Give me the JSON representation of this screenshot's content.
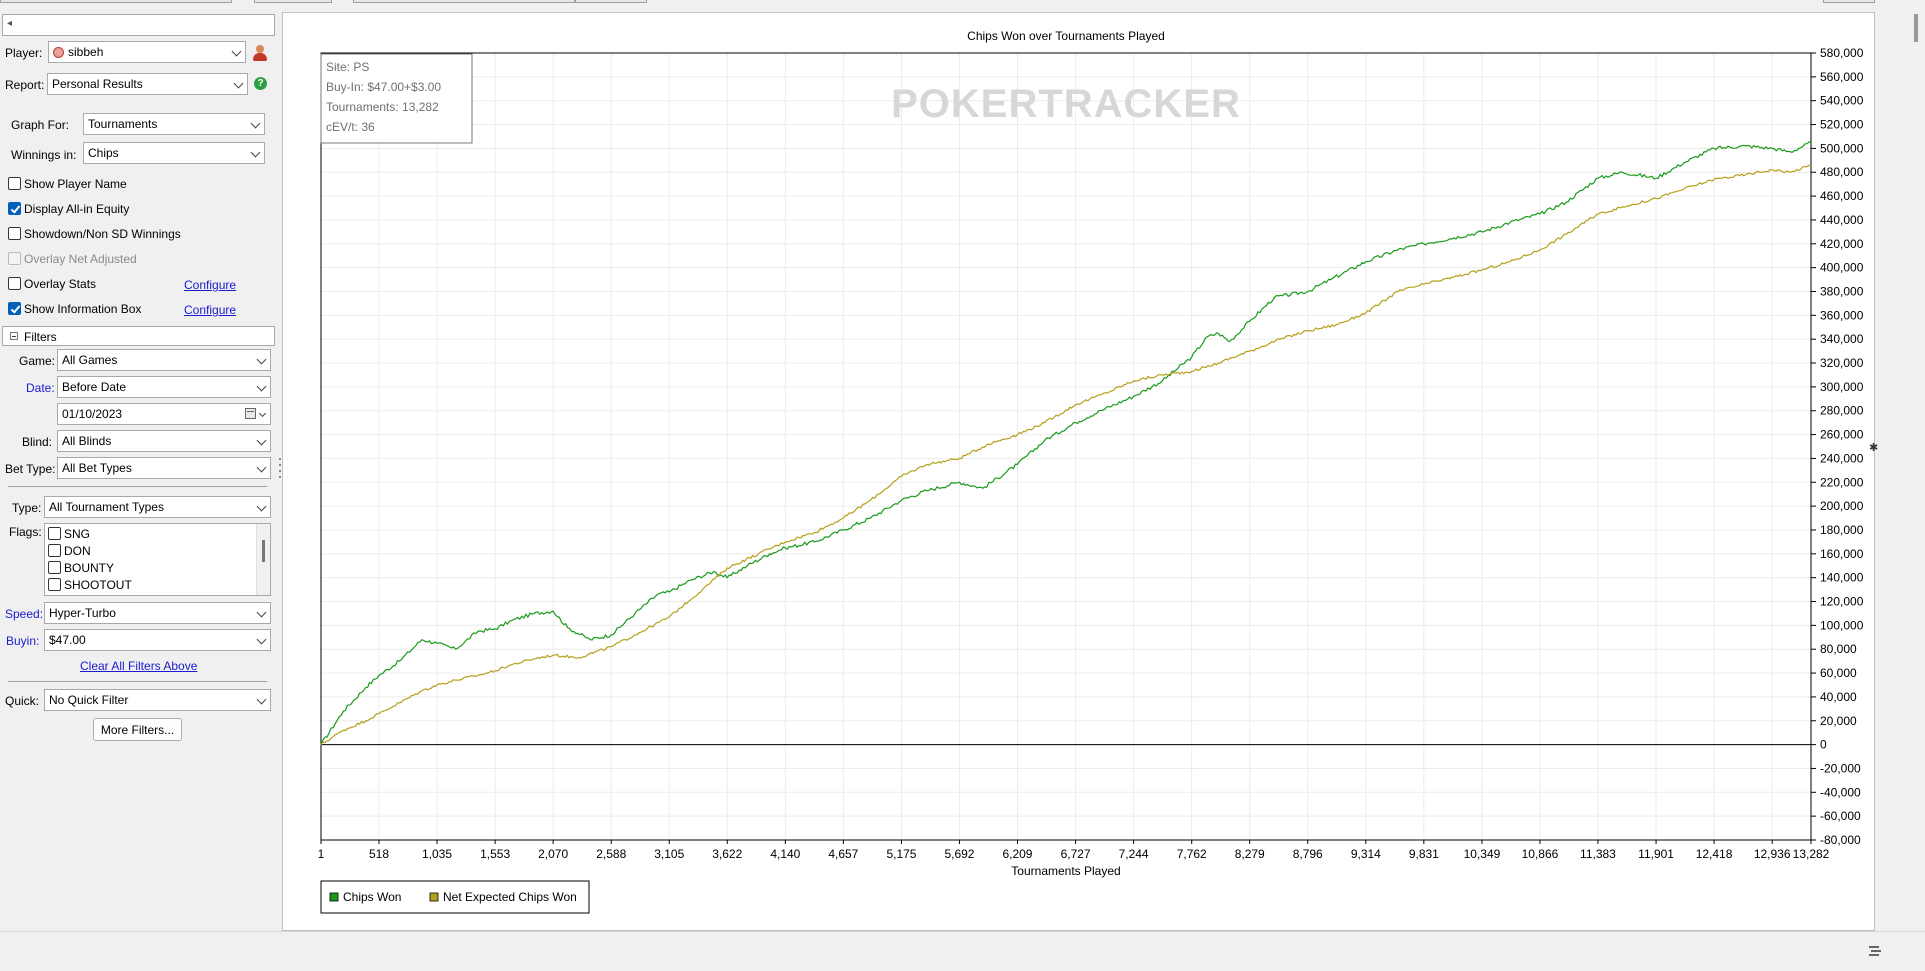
{
  "left_panel": {
    "collapse_chevron": "◂",
    "player_label": "Player:",
    "player_value": "sibbeh",
    "report_label": "Report:",
    "report_value": "Personal Results",
    "graph_for_label": "Graph For:",
    "graph_for_value": "Tournaments",
    "winnings_in_label": "Winnings in:",
    "winnings_in_value": "Chips",
    "options": [
      {
        "label": "Show Player Name",
        "checked": false,
        "disabled": false
      },
      {
        "label": "Display All-in Equity",
        "checked": true,
        "disabled": false
      },
      {
        "label": "Showdown/Non SD Winnings",
        "checked": false,
        "disabled": false
      },
      {
        "label": "Overlay Net Adjusted",
        "checked": false,
        "disabled": true
      },
      {
        "label": "Overlay Stats",
        "checked": false,
        "disabled": false
      },
      {
        "label": "Show Information Box",
        "checked": true,
        "disabled": false
      }
    ],
    "configure_label": "Configure"
  },
  "filters": {
    "header": "Filters",
    "game_label": "Game:",
    "game_value": "All Games",
    "date_label": "Date:",
    "date_value": "Before Date",
    "date_input": "01/10/2023",
    "blind_label": "Blind:",
    "blind_value": "All Blinds",
    "bet_type_label": "Bet Type:",
    "bet_type_value": "All Bet Types",
    "type_label": "Type:",
    "type_value": "All Tournament Types",
    "flags_label": "Flags:",
    "flags": [
      "SNG",
      "DON",
      "BOUNTY",
      "SHOOTOUT"
    ],
    "speed_label": "Speed:",
    "speed_value": "Hyper-Turbo",
    "buyin_label": "Buyin:",
    "buyin_value": "$47.00",
    "clear_link": "Clear All Filters Above",
    "quick_label": "Quick:",
    "quick_value": "No Quick Filter",
    "more_filters": "More Filters..."
  },
  "info_box": {
    "site": "Site: PS",
    "buy_in": "Buy-In: $47.00+$3.00",
    "tournaments": "Tournaments: 13,282",
    "cev": "cEV/t: 36"
  },
  "watermark": "POKERTRACKER",
  "chart_data": {
    "type": "line",
    "title": "Chips Won over Tournaments Played",
    "xlabel": "Tournaments Played",
    "ylabel": "",
    "x_ticks": [
      "1",
      "518",
      "1,035",
      "1,553",
      "2,070",
      "2,588",
      "3,105",
      "3,622",
      "4,140",
      "4,657",
      "5,175",
      "5,692",
      "6,209",
      "6,727",
      "7,244",
      "7,762",
      "8,279",
      "8,796",
      "9,314",
      "9,831",
      "10,349",
      "10,866",
      "11,383",
      "11,901",
      "12,418",
      "12,936",
      "13,282"
    ],
    "y_ticks": [
      "580,000",
      "560,000",
      "540,000",
      "520,000",
      "500,000",
      "480,000",
      "460,000",
      "440,000",
      "420,000",
      "400,000",
      "380,000",
      "360,000",
      "340,000",
      "320,000",
      "300,000",
      "280,000",
      "260,000",
      "240,000",
      "220,000",
      "200,000",
      "180,000",
      "160,000",
      "140,000",
      "120,000",
      "100,000",
      "80,000",
      "60,000",
      "40,000",
      "20,000",
      "0",
      "-20,000",
      "-40,000",
      "-60,000",
      "-80,000"
    ],
    "xlim": [
      1,
      13282
    ],
    "ylim": [
      -80000,
      580000
    ],
    "grid": true,
    "legend_position": "bottom-left",
    "series": [
      {
        "name": "Chips Won",
        "color": "#1a9a1a",
        "x": [
          1,
          200,
          400,
          518,
          700,
          900,
          1035,
          1200,
          1400,
          1553,
          1700,
          1900,
          2070,
          2200,
          2400,
          2588,
          2800,
          3000,
          3105,
          3300,
          3500,
          3622,
          3800,
          4000,
          4140,
          4400,
          4657,
          4900,
          5175,
          5400,
          5692,
          5900,
          6209,
          6450,
          6727,
          6950,
          7244,
          7500,
          7762,
          7900,
          8000,
          8100,
          8279,
          8500,
          8796,
          9000,
          9314,
          9600,
          9831,
          10100,
          10349,
          10600,
          10866,
          11100,
          11383,
          11600,
          11901,
          12150,
          12418,
          12700,
          12936,
          13100,
          13282
        ],
        "y": [
          0,
          28000,
          48000,
          58000,
          70000,
          88000,
          85000,
          80000,
          95000,
          97000,
          104000,
          110000,
          112000,
          98000,
          88000,
          92000,
          110000,
          126000,
          128000,
          138000,
          145000,
          140000,
          150000,
          160000,
          165000,
          170000,
          180000,
          190000,
          205000,
          213000,
          220000,
          215000,
          235000,
          255000,
          270000,
          280000,
          292000,
          305000,
          325000,
          342000,
          345000,
          338000,
          355000,
          375000,
          380000,
          390000,
          405000,
          415000,
          420000,
          425000,
          430000,
          438000,
          445000,
          455000,
          475000,
          480000,
          475000,
          488000,
          500000,
          502000,
          500000,
          497000,
          505000
        ]
      },
      {
        "name": "Net Expected Chips Won",
        "color": "#b5a01c",
        "x": [
          1,
          200,
          400,
          518,
          700,
          900,
          1035,
          1200,
          1400,
          1553,
          1700,
          1900,
          2070,
          2300,
          2588,
          2800,
          3105,
          3400,
          3622,
          3900,
          4140,
          4400,
          4657,
          4900,
          5175,
          5400,
          5692,
          5950,
          6209,
          6450,
          6727,
          7000,
          7244,
          7500,
          7762,
          8000,
          8279,
          8550,
          8796,
          9050,
          9314,
          9600,
          9831,
          10100,
          10349,
          10600,
          10866,
          11100,
          11383,
          11650,
          11901,
          12150,
          12418,
          12700,
          12936,
          13100,
          13282
        ],
        "y": [
          0,
          12000,
          20000,
          26000,
          35000,
          45000,
          50000,
          54000,
          58000,
          62000,
          67000,
          72000,
          75000,
          73000,
          82000,
          92000,
          107000,
          130000,
          148000,
          160000,
          170000,
          178000,
          190000,
          205000,
          225000,
          235000,
          240000,
          252000,
          260000,
          270000,
          285000,
          295000,
          305000,
          310000,
          313000,
          320000,
          330000,
          340000,
          347000,
          352000,
          362000,
          380000,
          386000,
          392000,
          398000,
          405000,
          415000,
          428000,
          445000,
          452000,
          458000,
          466000,
          474000,
          478000,
          482000,
          480000,
          486000
        ]
      }
    ]
  },
  "colors": {
    "chips_won": "#1a9a1a",
    "net_expected": "#b5a01c",
    "link_blue": "#1a1ad0"
  }
}
